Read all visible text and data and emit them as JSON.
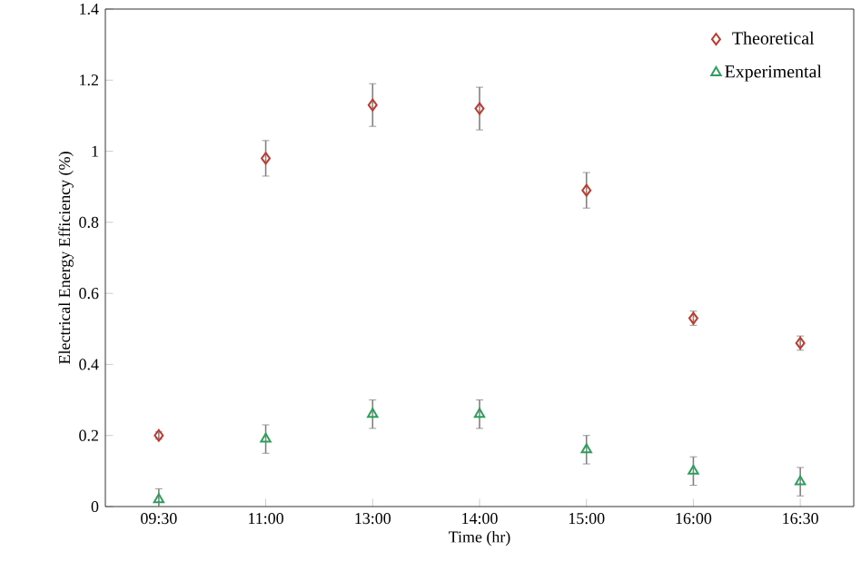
{
  "chart_data": {
    "type": "scatter",
    "xlabel": "Time (hr)",
    "ylabel": "Electrical Energy Efficiency (%)",
    "categories": [
      "09:30",
      "11:00",
      "13:00",
      "14:00",
      "15:00",
      "16:00",
      "16:30"
    ],
    "series": [
      {
        "name": "Theoretical",
        "color": "#c0392b",
        "marker": "diamond",
        "values": [
          0.2,
          0.98,
          1.13,
          1.12,
          0.89,
          0.53,
          0.46
        ],
        "errors": [
          0.01,
          0.05,
          0.06,
          0.06,
          0.05,
          0.02,
          0.02
        ]
      },
      {
        "name": "Experimental",
        "color": "#2ca05a",
        "marker": "triangle",
        "values": [
          0.02,
          0.19,
          0.26,
          0.26,
          0.16,
          0.1,
          0.07
        ],
        "errors": [
          0.03,
          0.04,
          0.04,
          0.04,
          0.04,
          0.04,
          0.04
        ]
      }
    ],
    "ylim": [
      0,
      1.4
    ],
    "yticks": [
      0,
      0.2,
      0.4,
      0.6,
      0.8,
      1,
      1.2,
      1.4
    ],
    "legend": "top right",
    "grid": false
  }
}
